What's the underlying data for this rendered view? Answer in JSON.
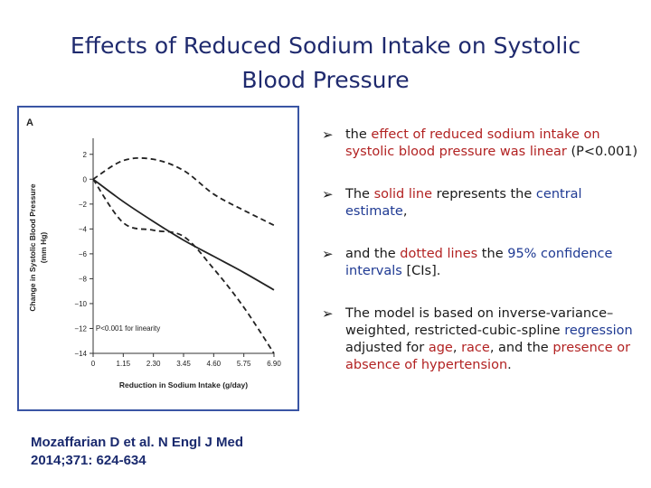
{
  "title_line1": "Effects of Reduced Sodium Intake on Systolic",
  "title_line2": "Blood Pressure",
  "chart_data": {
    "type": "line",
    "panel_label": "A",
    "xlabel": "Reduction in Sodium Intake (g/day)",
    "ylabel_line1": "Change in Systolic Blood Pressure",
    "ylabel_line2": "(mm Hg)",
    "xlim": [
      0,
      6.9
    ],
    "ylim": [
      -14,
      3
    ],
    "x_ticks": [
      0,
      1.15,
      2.3,
      3.45,
      4.6,
      5.75,
      6.9
    ],
    "x_tick_labels": [
      "0",
      "1.15",
      "2.30",
      "3.45",
      "4.60",
      "5.75",
      "6.90"
    ],
    "y_ticks": [
      2,
      0,
      -2,
      -4,
      -6,
      -8,
      -10,
      -12,
      -14
    ],
    "y_tick_labels": [
      "2",
      "0",
      "−2",
      "−4",
      "−6",
      "−8",
      "−10",
      "−12",
      "−14"
    ],
    "annotation": "P<0.001 for linearity",
    "series": [
      {
        "style": "solid",
        "x": [
          0,
          1.15,
          2.3,
          3.45,
          4.6,
          5.75,
          6.9
        ],
        "y": [
          0,
          -1.8,
          -3.4,
          -4.9,
          -6.2,
          -7.5,
          -8.9
        ]
      },
      {
        "style": "dashed",
        "x": [
          0,
          1.15,
          2.3,
          3.45,
          4.6,
          5.75,
          6.9
        ],
        "y": [
          0,
          1.5,
          1.6,
          0.7,
          -1.2,
          -2.5,
          -3.7
        ]
      },
      {
        "style": "dashed",
        "x": [
          0,
          1.15,
          2.3,
          3.45,
          4.6,
          5.75,
          6.9
        ],
        "y": [
          0,
          -3.5,
          -4.1,
          -4.6,
          -7.2,
          -10.3,
          -14.0
        ]
      }
    ]
  },
  "bullets": [
    [
      {
        "t": "the ",
        "c": ""
      },
      {
        "t": "effect of reduced sodium intake on systolic blood pressure was linear",
        "c": "red"
      },
      {
        "t": " (P<0.001)",
        "c": ""
      }
    ],
    [
      {
        "t": "The ",
        "c": ""
      },
      {
        "t": "solid line",
        "c": "red"
      },
      {
        "t": " represents the ",
        "c": ""
      },
      {
        "t": "central estimate",
        "c": "blue"
      },
      {
        "t": ",",
        "c": ""
      }
    ],
    [
      {
        "t": "and the ",
        "c": ""
      },
      {
        "t": "dotted lines",
        "c": "red"
      },
      {
        "t": " the ",
        "c": ""
      },
      {
        "t": "95% confidence intervals",
        "c": "blue"
      },
      {
        "t": " [CIs].",
        "c": ""
      }
    ],
    [
      {
        "t": "The model is based on inverse-variance–weighted, restricted-cubic-spline ",
        "c": ""
      },
      {
        "t": "regression",
        "c": "blue"
      },
      {
        "t": " adjusted for ",
        "c": ""
      },
      {
        "t": "age",
        "c": "red"
      },
      {
        "t": ", ",
        "c": ""
      },
      {
        "t": "race",
        "c": "red"
      },
      {
        "t": ", and the ",
        "c": ""
      },
      {
        "t": "presence or absence of hypertension",
        "c": "red"
      },
      {
        "t": ".",
        "c": ""
      }
    ]
  ],
  "bullet_arrow": "➢",
  "citation_line1": "Mozaffarian D et al. N Engl J Med",
  "citation_line2": "2014;371: 624-634"
}
